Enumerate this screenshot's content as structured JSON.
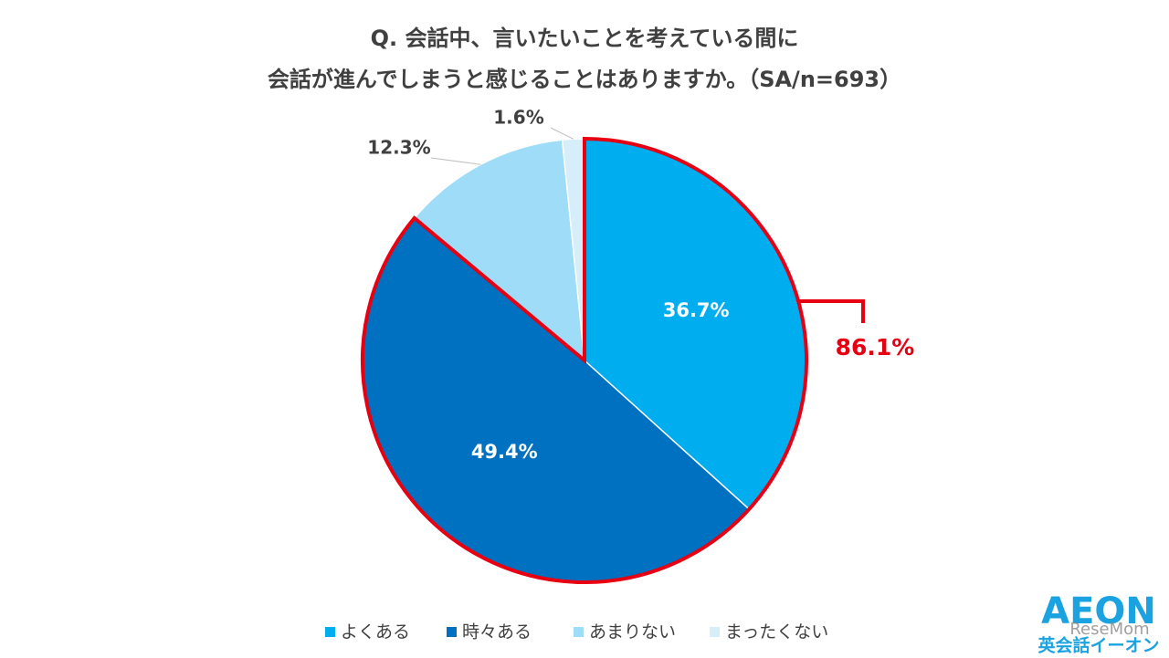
{
  "chart_data": {
    "type": "pie",
    "title": [
      "Q. 会話中、言いたいことを考えている間に",
      "会話が進んでしまうと感じることはありますか。（SA/n=693）"
    ],
    "categories": [
      "よくある",
      "時々ある",
      "あまりない",
      "まったくない"
    ],
    "values": [
      36.7,
      49.4,
      12.3,
      1.6
    ],
    "value_labels": [
      "36.7%",
      "49.4%",
      "12.3%",
      "1.6%"
    ],
    "colors": [
      "#00aeef",
      "#0070c0",
      "#9fdcf7",
      "#d5eefa"
    ],
    "highlight": {
      "label": "86.1%",
      "color": "#e60012",
      "count": 2
    },
    "legend": "bottom"
  },
  "logo": "AEON",
  "logo_sub": "英会話イーオン",
  "watermark": "ReseMom"
}
